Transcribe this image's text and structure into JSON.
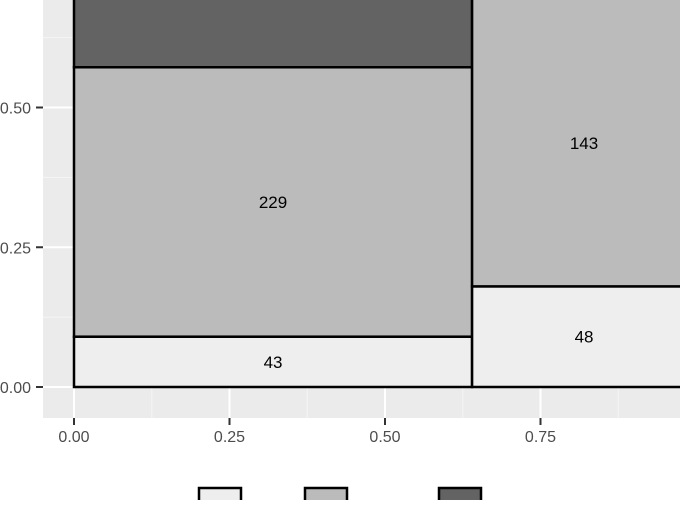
{
  "chart_data": {
    "type": "mosaic",
    "xlabel": "",
    "ylabel": "",
    "xlim": [
      -0.1,
      1.0
    ],
    "ylim": [
      -0.05,
      0.7
    ],
    "x_ticks": [
      {
        "value": 0.0,
        "label": "0.00"
      },
      {
        "value": 0.25,
        "label": "0.25"
      },
      {
        "value": 0.5,
        "label": "0.50"
      },
      {
        "value": 0.75,
        "label": "0.75"
      }
    ],
    "y_ticks": [
      {
        "value": 0.0,
        "label": "0.00"
      },
      {
        "value": 0.25,
        "label": "0.25"
      },
      {
        "value": 0.5,
        "label": "0.50"
      }
    ],
    "grid": true,
    "legend_position": "bottom",
    "colors": {
      "panel_background": "#ebebeb",
      "grid_major": "#ffffff",
      "grid_minor": "#f5f5f5",
      "border": "#000000",
      "tick_text": "#4d4d4d"
    },
    "levels": [
      {
        "key": "level1",
        "fill": "#eeeeee"
      },
      {
        "key": "level2",
        "fill": "#bbbbbb"
      },
      {
        "key": "level3",
        "fill": "#636363"
      }
    ],
    "columns": [
      {
        "x_start": 0.0,
        "x_end": 0.64,
        "segments": [
          {
            "level": "level1",
            "y_start": 0.0,
            "y_end": 0.09,
            "label": "43"
          },
          {
            "level": "level2",
            "y_start": 0.09,
            "y_end": 0.572,
            "label": "229"
          },
          {
            "level": "level3",
            "y_start": 0.572,
            "y_end": 1.0,
            "label": ""
          }
        ]
      },
      {
        "x_start": 0.64,
        "x_end": 1.0,
        "segments": [
          {
            "level": "level1",
            "y_start": 0.0,
            "y_end": 0.18,
            "label": "48"
          },
          {
            "level": "level2",
            "y_start": 0.18,
            "y_end": 1.0,
            "label": "143"
          }
        ]
      }
    ]
  }
}
